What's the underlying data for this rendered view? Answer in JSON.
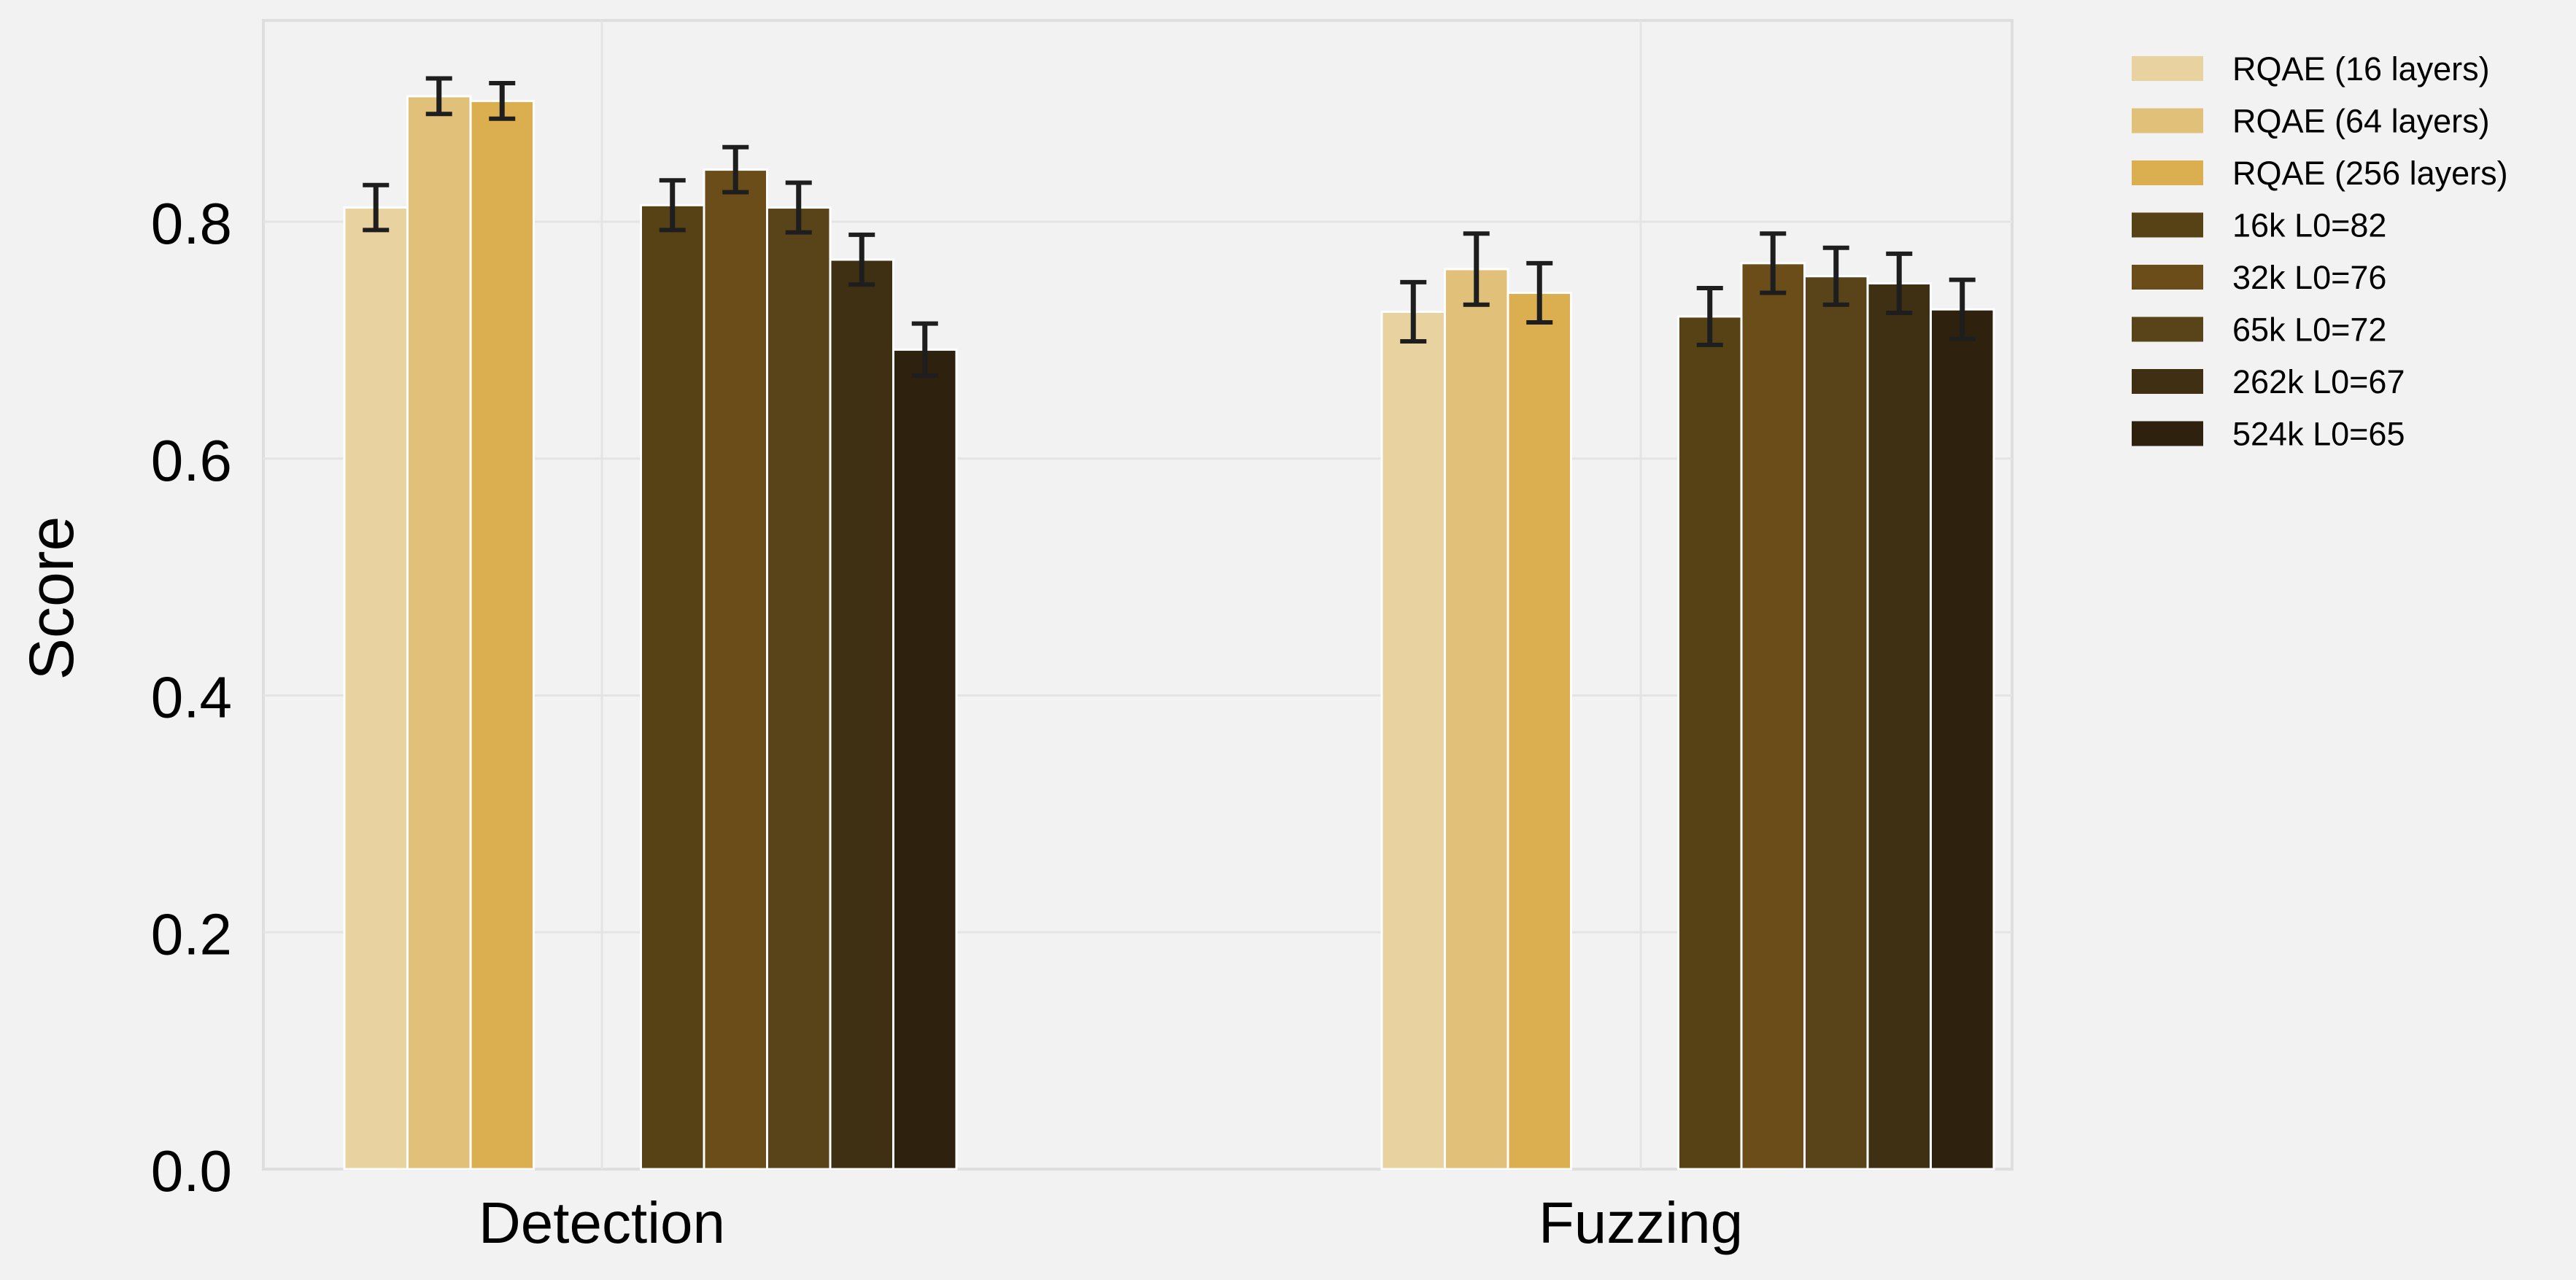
{
  "chart_data": {
    "type": "bar",
    "title": "",
    "xlabel": "",
    "ylabel": "Score",
    "ylim": [
      0,
      0.97
    ],
    "yticks": [
      "0.0",
      "0.2",
      "0.4",
      "0.6",
      "0.8"
    ],
    "categories": [
      "Detection",
      "Fuzzing"
    ],
    "grid": true,
    "legend_position": "outside-top-right",
    "series": [
      {
        "name": "RQAE (16 layers)",
        "color": "#e8d2a0",
        "values": [
          0.812,
          0.724
        ],
        "errors": [
          0.019,
          0.025
        ]
      },
      {
        "name": "RQAE (64 layers)",
        "color": "#e1c07a",
        "values": [
          0.906,
          0.76
        ],
        "errors": [
          0.015,
          0.03
        ]
      },
      {
        "name": "RQAE (256 layers)",
        "color": "#dbae50",
        "values": [
          0.902,
          0.74
        ],
        "errors": [
          0.015,
          0.025
        ]
      },
      {
        "name": "16k L0=82",
        "color": "#574215",
        "values": [
          0.814,
          0.72
        ],
        "errors": [
          0.021,
          0.024
        ]
      },
      {
        "name": "32k L0=76",
        "color": "#6a4d18",
        "values": [
          0.844,
          0.765
        ],
        "errors": [
          0.019,
          0.025
        ]
      },
      {
        "name": "65k L0=72",
        "color": "#594318",
        "values": [
          0.812,
          0.754
        ],
        "errors": [
          0.021,
          0.024
        ]
      },
      {
        "name": "262k L0=67",
        "color": "#403013",
        "values": [
          0.768,
          0.748
        ],
        "errors": [
          0.021,
          0.025
        ]
      },
      {
        "name": "524k L0=65",
        "color": "#2e220e",
        "values": [
          0.692,
          0.726
        ],
        "errors": [
          0.022,
          0.025
        ]
      }
    ]
  }
}
